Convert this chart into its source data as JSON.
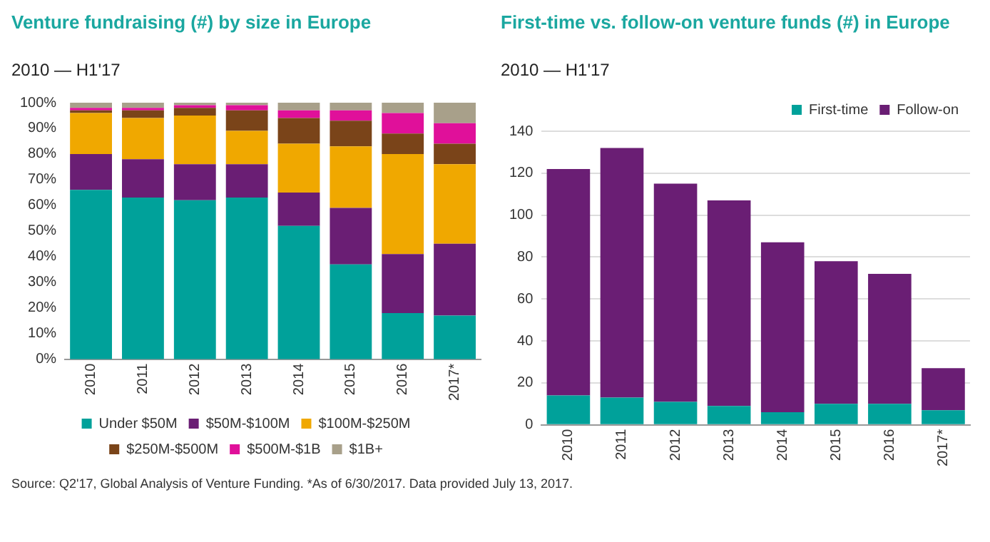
{
  "chart_data": [
    {
      "type": "bar",
      "title": "Venture fundraising (#) by size in Europe",
      "subtitle": "2010 — H1'17",
      "categories": [
        "2010",
        "2011",
        "2012",
        "2013",
        "2014",
        "2015",
        "2016",
        "2017*"
      ],
      "stacked": true,
      "series": [
        {
          "name": "Under $50M",
          "color": "#00a19a",
          "values": [
            66,
            63,
            62,
            63,
            52,
            37,
            18,
            17
          ]
        },
        {
          "name": "$50M-$100M",
          "color": "#6a1e74",
          "values": [
            14,
            15,
            14,
            13,
            13,
            22,
            23,
            28
          ]
        },
        {
          "name": "$100M-$250M",
          "color": "#f0a800",
          "values": [
            16,
            16,
            19,
            13,
            19,
            24,
            39,
            31
          ]
        },
        {
          "name": "$250M-$500M",
          "color": "#7a4419",
          "values": [
            1,
            3,
            3,
            8,
            10,
            10,
            8,
            8
          ]
        },
        {
          "name": "$500M-$1B",
          "color": "#e0109a",
          "values": [
            1,
            1,
            1,
            2,
            3,
            4,
            8,
            8
          ]
        },
        {
          "name": "$1B+",
          "color": "#a8a08a",
          "values": [
            2,
            2,
            1,
            1,
            3,
            3,
            4,
            8
          ]
        }
      ],
      "ylim": [
        0,
        100
      ],
      "yticks": [
        {
          "value": 0,
          "label": "0%"
        },
        {
          "value": 10,
          "label": "10%"
        },
        {
          "value": 20,
          "label": "20%"
        },
        {
          "value": 30,
          "label": "30%"
        },
        {
          "value": 40,
          "label": "40%"
        },
        {
          "value": 50,
          "label": "50%"
        },
        {
          "value": 60,
          "label": "60%"
        },
        {
          "value": 70,
          "label": "70%"
        },
        {
          "value": 80,
          "label": "80%"
        },
        {
          "value": 90,
          "label": "90%"
        },
        {
          "value": 100,
          "label": "100%"
        }
      ],
      "legend": "bottom",
      "annotations": [
        "Source: Q2'17, Global Analysis of Venture Funding. *As of 6/30/2017. Data provided July 13, 2017."
      ]
    },
    {
      "type": "bar",
      "title": "First-time vs. follow-on venture funds (#) in Europe",
      "subtitle": "2010 — H1'17",
      "categories": [
        "2010",
        "2011",
        "2012",
        "2013",
        "2014",
        "2015",
        "2016",
        "2017*"
      ],
      "stacked": true,
      "series": [
        {
          "name": "First-time",
          "color": "#00a19a",
          "values": [
            14,
            13,
            11,
            9,
            6,
            10,
            10,
            7
          ]
        },
        {
          "name": "Follow-on",
          "color": "#6a1e74",
          "values": [
            108,
            119,
            104,
            98,
            81,
            68,
            62,
            20
          ]
        }
      ],
      "ylim": [
        0,
        140
      ],
      "yticks": [
        0,
        20,
        40,
        60,
        80,
        100,
        120,
        140
      ],
      "grid": "y",
      "legend": "top right"
    }
  ]
}
